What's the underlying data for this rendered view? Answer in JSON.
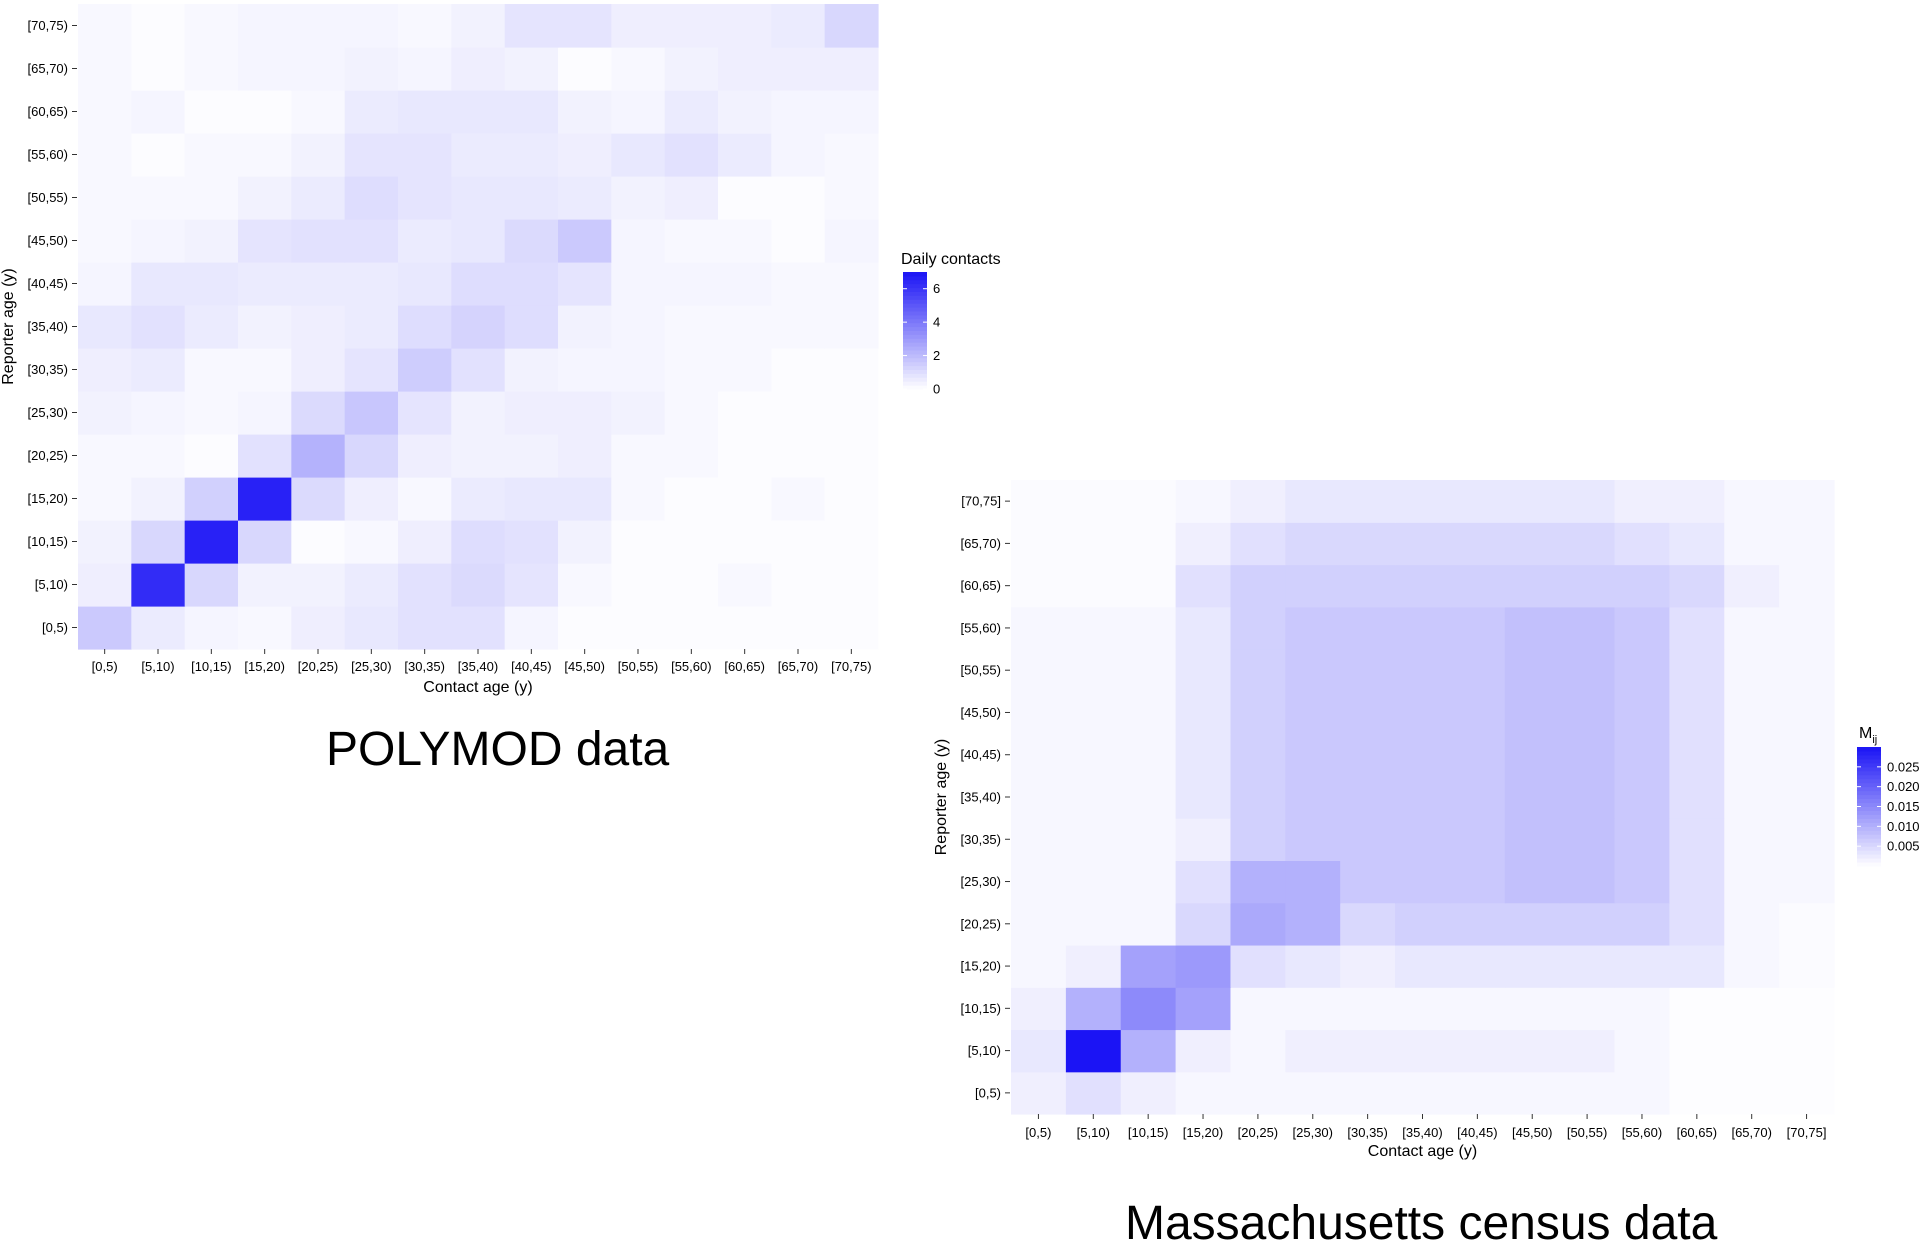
{
  "chart_data": [
    {
      "type": "heatmap",
      "title": "POLYMOD data",
      "xlabel": "Contact age (y)",
      "ylabel": "Reporter age (y)",
      "categories": [
        "[0,5)",
        "[5,10)",
        "[10,15)",
        "[15,20)",
        "[20,25)",
        "[25,30)",
        "[30,35)",
        "[35,40)",
        "[40,45)",
        "[45,50)",
        "[50,55)",
        "[55,60)",
        "[60,65)",
        "[65,70)",
        "[70,75)"
      ],
      "value_range": [
        0,
        7
      ],
      "colors": {
        "low": "#ffffff",
        "high": "#1b14f5"
      },
      "legend": {
        "title": "Daily contacts",
        "ticks": [
          0,
          2,
          4,
          6
        ],
        "tick_labels": [
          "0",
          "2",
          "4",
          "6"
        ],
        "placement": "right"
      },
      "values": [
        [
          1.6,
          0.6,
          0.3,
          0.2,
          0.5,
          0.7,
          0.9,
          0.9,
          0.3,
          0.1,
          0.1,
          0.1,
          0.1,
          0.1,
          0.1
        ],
        [
          0.5,
          6.3,
          1.2,
          0.4,
          0.4,
          0.6,
          0.9,
          1.1,
          0.8,
          0.2,
          0.1,
          0.1,
          0.2,
          0.1,
          0.1
        ],
        [
          0.4,
          1.2,
          6.6,
          1.2,
          0.1,
          0.2,
          0.5,
          1.0,
          0.9,
          0.4,
          0.1,
          0.1,
          0.1,
          0.1,
          0.1
        ],
        [
          0.2,
          0.4,
          1.4,
          6.6,
          1.1,
          0.5,
          0.2,
          0.6,
          0.7,
          0.7,
          0.2,
          0.1,
          0.1,
          0.2,
          0.1
        ],
        [
          0.2,
          0.2,
          0.1,
          0.9,
          2.3,
          1.2,
          0.5,
          0.4,
          0.4,
          0.5,
          0.2,
          0.2,
          0.1,
          0.1,
          0.1
        ],
        [
          0.4,
          0.3,
          0.2,
          0.3,
          1.1,
          1.7,
          0.8,
          0.4,
          0.5,
          0.5,
          0.4,
          0.2,
          0.1,
          0.1,
          0.1
        ],
        [
          0.5,
          0.6,
          0.2,
          0.2,
          0.5,
          0.8,
          1.5,
          0.9,
          0.4,
          0.3,
          0.3,
          0.2,
          0.2,
          0.1,
          0.1
        ],
        [
          0.7,
          0.9,
          0.6,
          0.4,
          0.5,
          0.6,
          1.0,
          1.3,
          1.0,
          0.4,
          0.3,
          0.2,
          0.2,
          0.2,
          0.2
        ],
        [
          0.3,
          0.7,
          0.7,
          0.6,
          0.6,
          0.6,
          0.7,
          1.0,
          1.0,
          0.8,
          0.3,
          0.3,
          0.3,
          0.2,
          0.2
        ],
        [
          0.2,
          0.3,
          0.4,
          0.8,
          0.9,
          0.9,
          0.6,
          0.7,
          1.1,
          1.6,
          0.3,
          0.2,
          0.2,
          0.1,
          0.3
        ],
        [
          0.2,
          0.2,
          0.2,
          0.4,
          0.6,
          1.0,
          0.8,
          0.7,
          0.7,
          0.6,
          0.4,
          0.5,
          0.1,
          0.1,
          0.2
        ],
        [
          0.2,
          0.1,
          0.2,
          0.2,
          0.4,
          0.8,
          0.8,
          0.6,
          0.6,
          0.5,
          0.7,
          0.9,
          0.6,
          0.3,
          0.2
        ],
        [
          0.2,
          0.3,
          0.1,
          0.1,
          0.2,
          0.6,
          0.7,
          0.7,
          0.7,
          0.4,
          0.3,
          0.6,
          0.4,
          0.3,
          0.3
        ],
        [
          0.2,
          0.1,
          0.2,
          0.3,
          0.3,
          0.4,
          0.3,
          0.5,
          0.4,
          0.1,
          0.2,
          0.4,
          0.5,
          0.5,
          0.5
        ],
        [
          0.2,
          0.1,
          0.2,
          0.3,
          0.3,
          0.3,
          0.2,
          0.4,
          0.8,
          0.8,
          0.5,
          0.5,
          0.5,
          0.6,
          1.2
        ]
      ]
    },
    {
      "type": "heatmap",
      "title": "Massachusetts census data",
      "xlabel": "Contact age (y)",
      "ylabel": "Reporter age (y)",
      "categories": [
        "[0,5)",
        "[5,10)",
        "[10,15)",
        "[15,20)",
        "[20,25)",
        "[25,30)",
        "[30,35)",
        "[35,40)",
        "[40,45)",
        "[45,50)",
        "[50,55)",
        "[55,60)",
        "[60,65)",
        "[65,70)",
        "[70,75]"
      ],
      "value_range": [
        0,
        0.03
      ],
      "colors": {
        "low": "#ffffff",
        "high": "#1b14f5"
      },
      "legend": {
        "title": "M",
        "title_subscript": "ij",
        "ticks": [
          0.005,
          0.01,
          0.015,
          0.02,
          0.025
        ],
        "tick_labels": [
          "0.005",
          "0.010",
          "0.015",
          "0.020",
          "0.025"
        ],
        "placement": "right"
      },
      "values": [
        [
          0.002,
          0.004,
          0.002,
          0.001,
          0.001,
          0.001,
          0.001,
          0.001,
          0.001,
          0.001,
          0.001,
          0.001,
          0.0003,
          0.0003,
          0.0003
        ],
        [
          0.003,
          0.03,
          0.01,
          0.002,
          0.001,
          0.002,
          0.002,
          0.002,
          0.002,
          0.002,
          0.002,
          0.001,
          0.0003,
          0.0003,
          0.0003
        ],
        [
          0.002,
          0.01,
          0.015,
          0.012,
          0.001,
          0.001,
          0.001,
          0.001,
          0.001,
          0.001,
          0.001,
          0.001,
          0.0003,
          0.0003,
          0.0003
        ],
        [
          0.001,
          0.002,
          0.012,
          0.013,
          0.004,
          0.003,
          0.002,
          0.003,
          0.003,
          0.003,
          0.003,
          0.003,
          0.003,
          0.001,
          0.0005
        ],
        [
          0.001,
          0.001,
          0.001,
          0.005,
          0.011,
          0.01,
          0.005,
          0.006,
          0.006,
          0.006,
          0.006,
          0.006,
          0.004,
          0.001,
          0.0005
        ],
        [
          0.001,
          0.001,
          0.001,
          0.004,
          0.01,
          0.01,
          0.007,
          0.007,
          0.007,
          0.008,
          0.008,
          0.007,
          0.004,
          0.001,
          0.001
        ],
        [
          0.001,
          0.001,
          0.001,
          0.002,
          0.006,
          0.007,
          0.007,
          0.007,
          0.007,
          0.008,
          0.008,
          0.007,
          0.004,
          0.001,
          0.001
        ],
        [
          0.001,
          0.001,
          0.001,
          0.003,
          0.006,
          0.007,
          0.007,
          0.007,
          0.007,
          0.008,
          0.008,
          0.007,
          0.004,
          0.001,
          0.001
        ],
        [
          0.001,
          0.001,
          0.001,
          0.003,
          0.006,
          0.007,
          0.007,
          0.007,
          0.007,
          0.008,
          0.008,
          0.007,
          0.004,
          0.001,
          0.001
        ],
        [
          0.001,
          0.001,
          0.001,
          0.003,
          0.006,
          0.007,
          0.007,
          0.007,
          0.007,
          0.008,
          0.008,
          0.007,
          0.004,
          0.001,
          0.001
        ],
        [
          0.001,
          0.001,
          0.001,
          0.003,
          0.006,
          0.007,
          0.007,
          0.007,
          0.007,
          0.008,
          0.008,
          0.007,
          0.004,
          0.001,
          0.001
        ],
        [
          0.001,
          0.001,
          0.001,
          0.003,
          0.006,
          0.007,
          0.007,
          0.007,
          0.007,
          0.008,
          0.008,
          0.007,
          0.004,
          0.001,
          0.001
        ],
        [
          0.0005,
          0.0005,
          0.0005,
          0.004,
          0.006,
          0.006,
          0.006,
          0.006,
          0.006,
          0.006,
          0.006,
          0.006,
          0.005,
          0.002,
          0.001
        ],
        [
          0.0005,
          0.0005,
          0.0005,
          0.002,
          0.004,
          0.005,
          0.005,
          0.005,
          0.005,
          0.005,
          0.005,
          0.004,
          0.003,
          0.001,
          0.001
        ],
        [
          0.0005,
          0.0005,
          0.0005,
          0.001,
          0.002,
          0.003,
          0.003,
          0.003,
          0.003,
          0.003,
          0.003,
          0.002,
          0.002,
          0.001,
          0.001
        ]
      ]
    }
  ]
}
